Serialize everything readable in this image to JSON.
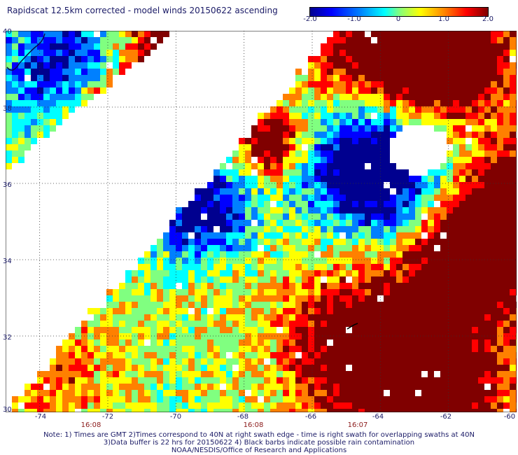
{
  "title": "Rapidscat 12.5km corrected - model winds 20150622 ascending",
  "colorbar": {
    "labels": [
      "-2.0",
      "-1.0",
      "0",
      "1.0",
      "2.0"
    ],
    "range": [
      -2.0,
      2.0
    ],
    "colors": [
      "#00008f",
      "#0000ff",
      "#0080ff",
      "#00ffff",
      "#80ff80",
      "#ffff00",
      "#ff8000",
      "#ff0000",
      "#800000"
    ]
  },
  "map": {
    "lon_range": [
      -75,
      -60
    ],
    "lat_range": [
      30,
      40
    ],
    "lon_labels": [
      "-74",
      "-72",
      "-70",
      "-68",
      "-66",
      "-64",
      "-62",
      "-60"
    ],
    "lat_labels": [
      "40",
      "38",
      "36",
      "34",
      "32",
      "30"
    ],
    "time_labels": [
      "16:08",
      "16:08",
      "16:07"
    ],
    "grid": "dotted",
    "background": "#ffffff"
  },
  "note": {
    "line1": "Note: 1) Times are GMT 2)Times correspond to 40N at right swath edge - time is right swath for overlapping swaths at 40N",
    "line2": "3)Data buffer is 22 hrs for 20150622 4) Black barbs indicate possible rain contamination",
    "line3": "NOAA/NESDIS/Office of Research and Applications"
  }
}
